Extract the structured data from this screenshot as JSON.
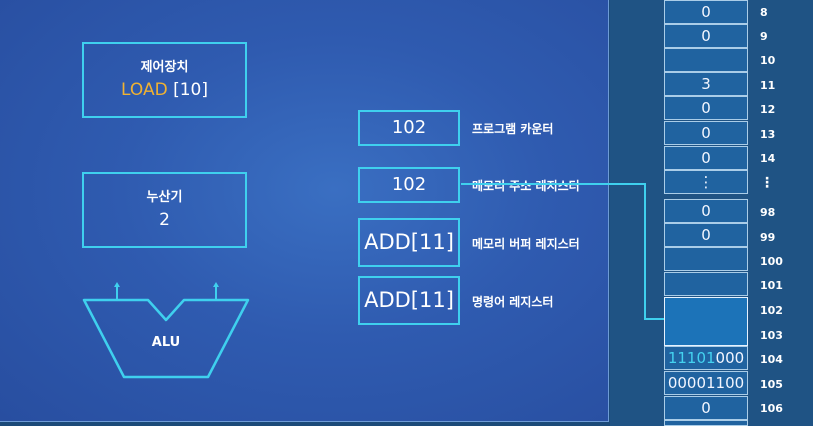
{
  "control_unit": {
    "title": "제어장치",
    "value_op": "LOAD",
    "value_arg": " [10]"
  },
  "accumulator": {
    "title": "누산기",
    "value": "2"
  },
  "alu": {
    "label": "ALU"
  },
  "registers": {
    "program_counter": {
      "value": "102",
      "label": "프로그램 카운터"
    },
    "memory_address": {
      "value": "102",
      "label": "메모리 주소 레지스터"
    },
    "memory_buffer": {
      "value": "ADD[11]",
      "label": "메모리 버퍼 레지스터"
    },
    "instruction": {
      "value": "ADD[11]",
      "label": "명령어 레지스터"
    }
  },
  "memory": {
    "cells": [
      "0",
      "0",
      "",
      "3",
      "0",
      "0",
      "0",
      "⋮",
      "0",
      "0",
      "",
      "",
      "",
      "",
      "",
      "",
      "0"
    ],
    "addresses": [
      "8",
      "9",
      "10",
      "11",
      "12",
      "13",
      "14",
      "⋮",
      "98",
      "99",
      "100",
      "101",
      "102",
      "103",
      "104",
      "105",
      "106"
    ],
    "cell_104": {
      "cyan": "11101",
      "white": "000"
    },
    "cell_105": "00001100"
  },
  "colors": {
    "accent": "#3fd0ee",
    "orange": "#f0b232",
    "purple": "#c96cf0"
  }
}
